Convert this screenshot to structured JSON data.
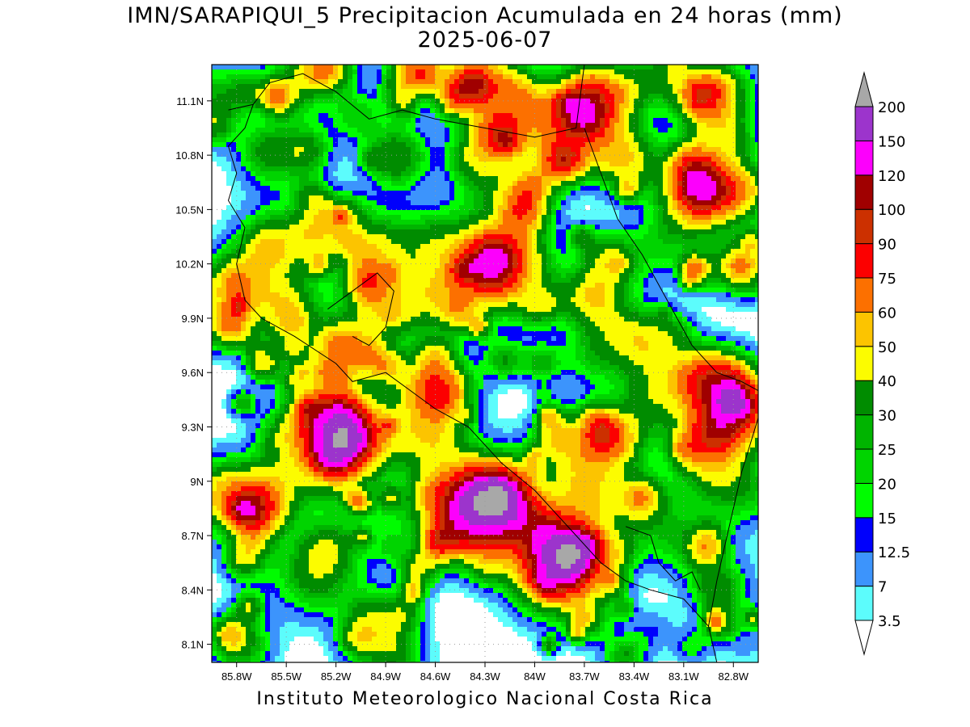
{
  "title": "IMN/SARAPIQUI_5 Precipitacion Acumulada en 24 horas (mm)",
  "date": "2025-06-07",
  "footer": "Instituto Meteorologico Nacional Costa Rica",
  "map": {
    "lon_range": [
      -85.95,
      -82.65
    ],
    "lat_range": [
      8.0,
      11.3
    ],
    "lat_ticks": [
      {
        "value": 11.1,
        "label": "11.1N"
      },
      {
        "value": 10.8,
        "label": "10.8N"
      },
      {
        "value": 10.5,
        "label": "10.5N"
      },
      {
        "value": 10.2,
        "label": "10.2N"
      },
      {
        "value": 9.9,
        "label": "9.9N"
      },
      {
        "value": 9.6,
        "label": "9.6N"
      },
      {
        "value": 9.3,
        "label": "9.3N"
      },
      {
        "value": 9.0,
        "label": "9N"
      },
      {
        "value": 8.7,
        "label": "8.7N"
      },
      {
        "value": 8.4,
        "label": "8.4N"
      },
      {
        "value": 8.1,
        "label": "8.1N"
      }
    ],
    "lon_ticks": [
      {
        "value": -85.8,
        "label": "85.8W"
      },
      {
        "value": -85.5,
        "label": "85.5W"
      },
      {
        "value": -85.2,
        "label": "85.2W"
      },
      {
        "value": -84.9,
        "label": "84.9W"
      },
      {
        "value": -84.6,
        "label": "84.6W"
      },
      {
        "value": -84.3,
        "label": "84.3W"
      },
      {
        "value": -84.0,
        "label": "84W"
      },
      {
        "value": -83.7,
        "label": "83.7W"
      },
      {
        "value": -83.4,
        "label": "83.4W"
      },
      {
        "value": -83.1,
        "label": "83.1W"
      },
      {
        "value": -82.8,
        "label": "82.8W"
      }
    ],
    "grid": true,
    "heavy_rain_areas": [
      {
        "lon": -85.2,
        "lat": 9.2,
        "max_mm": 150
      },
      {
        "lon": -84.25,
        "lat": 8.85,
        "max_mm": 150
      },
      {
        "lon": -83.85,
        "lat": 8.55,
        "max_mm": 200
      },
      {
        "lon": -83.75,
        "lat": 11.0,
        "max_mm": 120
      },
      {
        "lon": -84.3,
        "lat": 10.2,
        "max_mm": 120
      }
    ]
  },
  "legend": {
    "unit": "mm",
    "entries": [
      {
        "label": "3.5",
        "color": "#5cfcfc"
      },
      {
        "label": "7",
        "color": "#3c94fc"
      },
      {
        "label": "12.5",
        "color": "#0000fc"
      },
      {
        "label": "15",
        "color": "#00fc00"
      },
      {
        "label": "20",
        "color": "#00d400"
      },
      {
        "label": "25",
        "color": "#00b400"
      },
      {
        "label": "30",
        "color": "#008c00"
      },
      {
        "label": "40",
        "color": "#fcfc00"
      },
      {
        "label": "50",
        "color": "#fcc400"
      },
      {
        "label": "60",
        "color": "#fc7000"
      },
      {
        "label": "75",
        "color": "#fc0000"
      },
      {
        "label": "90",
        "color": "#cc3000"
      },
      {
        "label": "100",
        "color": "#a00000"
      },
      {
        "label": "120",
        "color": "#fc00fc"
      },
      {
        "label": "150",
        "color": "#9c34cc"
      },
      {
        "label": "200",
        "color": "#f4f4f4"
      }
    ],
    "below_color": "#ffffff",
    "above_color": "#a8a8a8"
  }
}
